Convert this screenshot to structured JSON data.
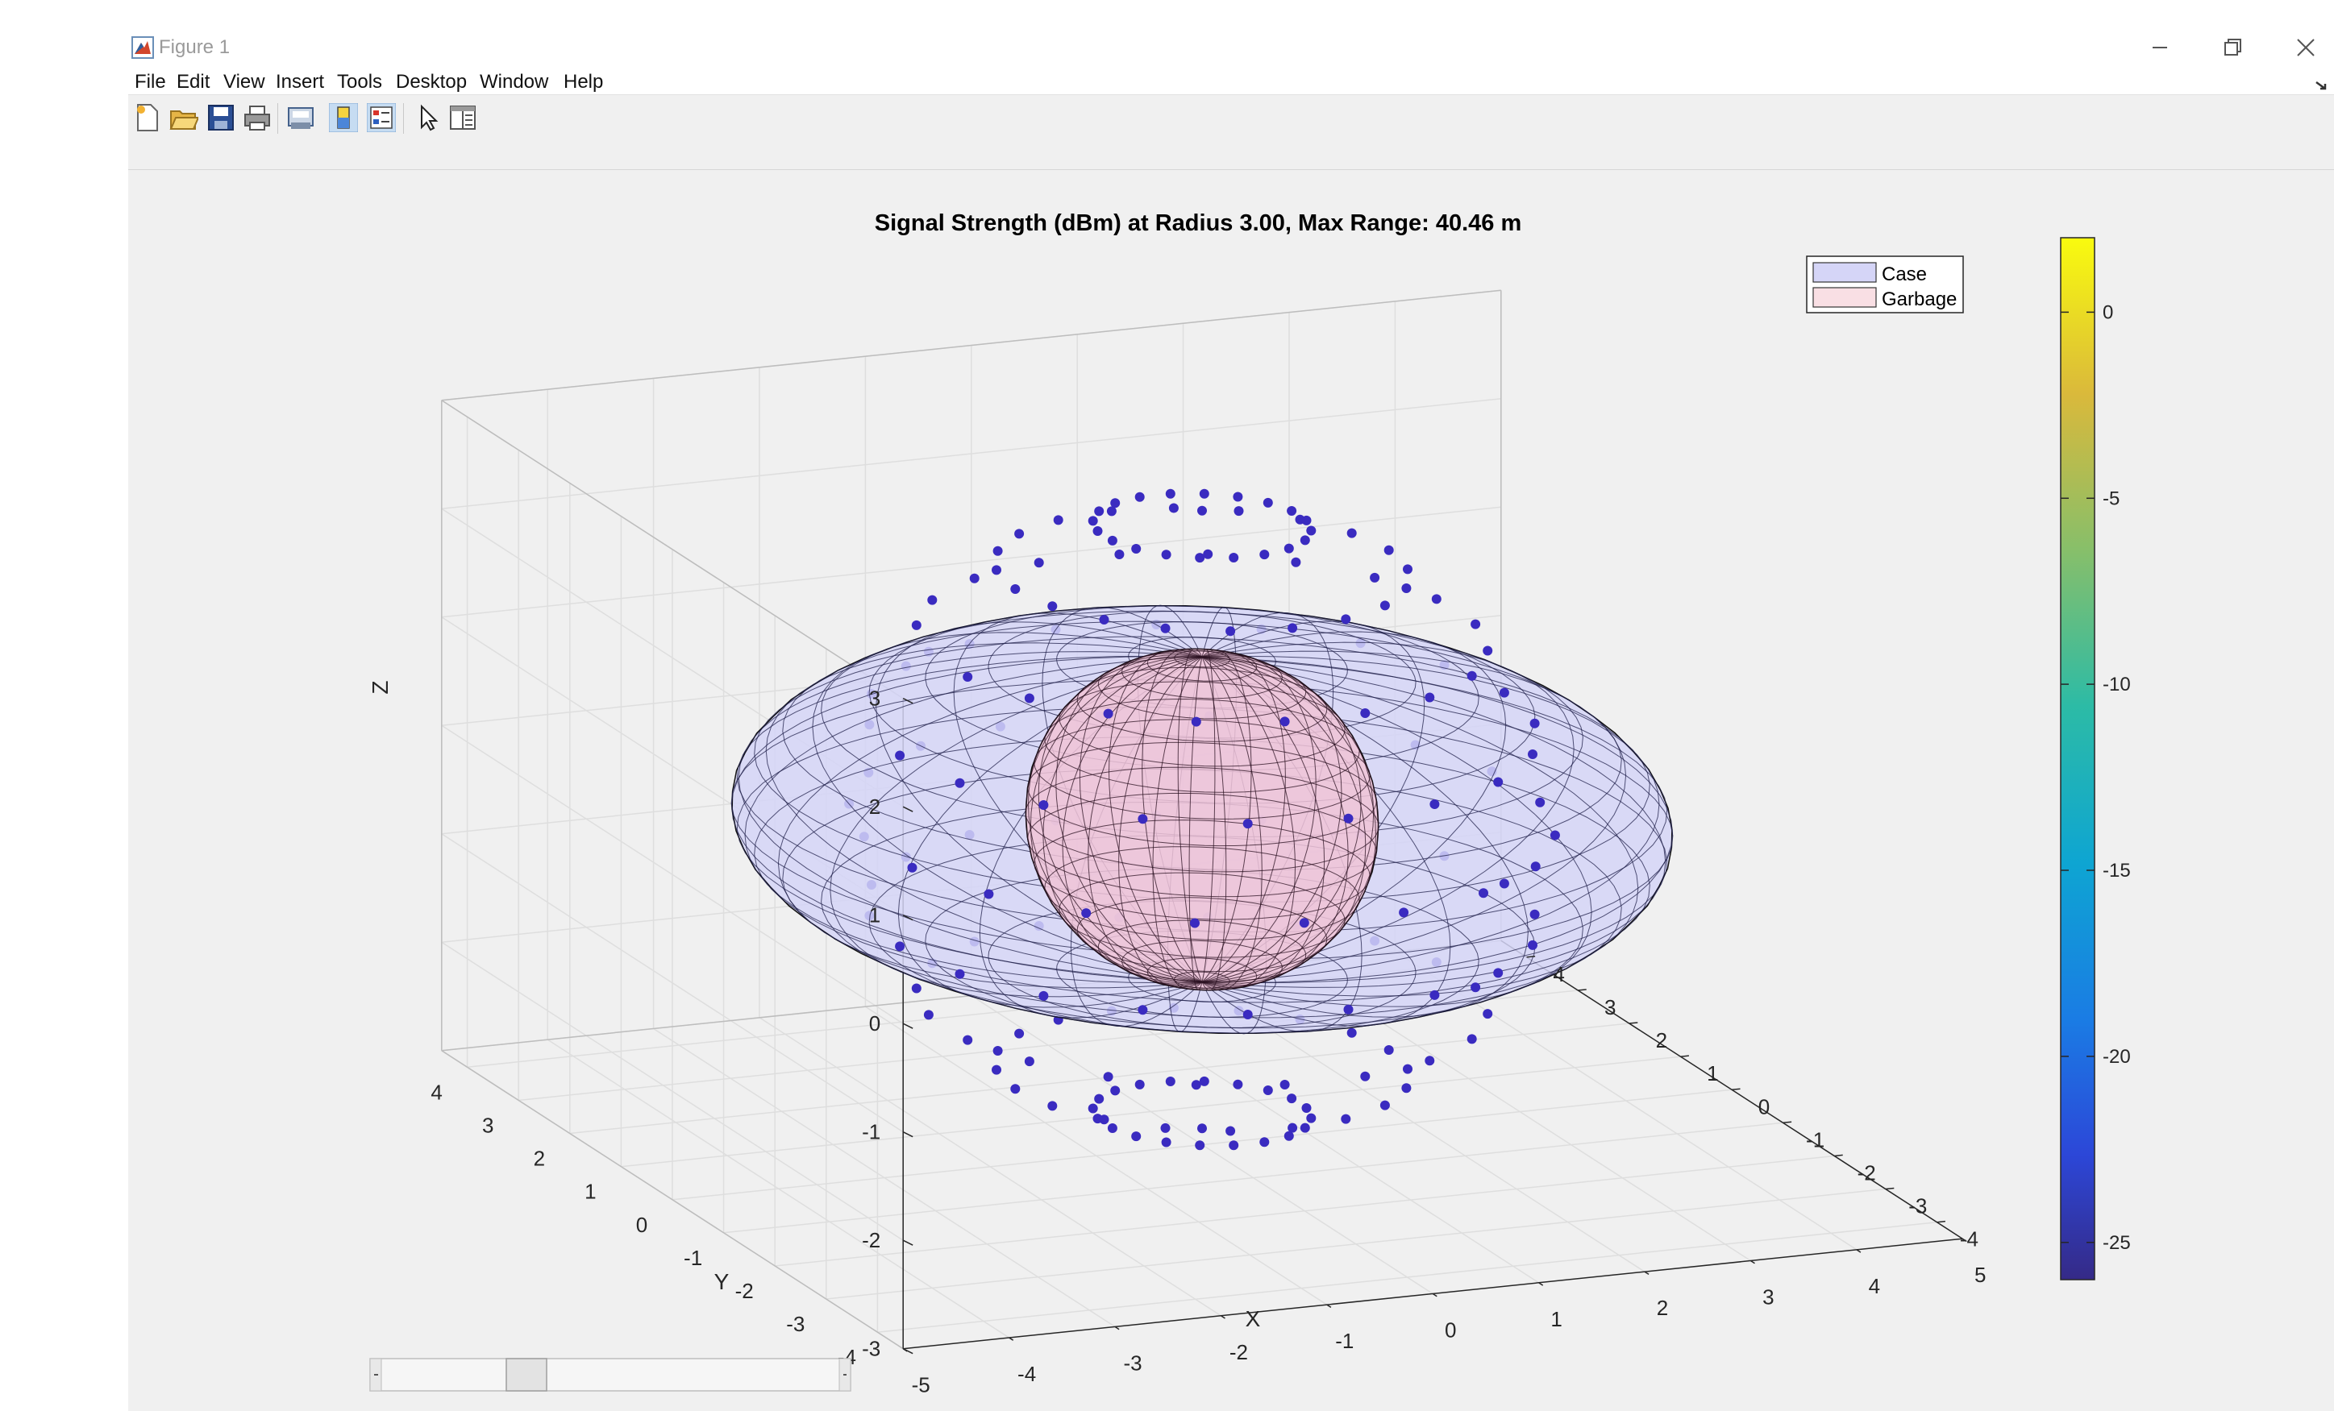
{
  "window": {
    "title": "Figure 1",
    "menu": [
      "File",
      "Edit",
      "View",
      "Insert",
      "Tools",
      "Desktop",
      "Window",
      "Help"
    ]
  },
  "toolbar": {
    "icons": [
      "new-figure-icon",
      "open-file-icon",
      "save-icon",
      "print-icon",
      "print-preview-icon",
      "colorbar-icon",
      "legend-icon",
      "pointer-icon",
      "property-editor-icon"
    ]
  },
  "figure": {
    "title": "Signal Strength (dBm) at Radius 3.00, Max Range: 40.46 m",
    "legend": [
      {
        "label": "Case",
        "color": "#d5d5f7"
      },
      {
        "label": "Garbage",
        "color": "#f9dfe4"
      }
    ],
    "axes": {
      "xlabel": "X",
      "ylabel": "Y",
      "zlabel": "Z",
      "xticks": [
        "-5",
        "-4",
        "-3",
        "-2",
        "-1",
        "0",
        "1",
        "2",
        "3",
        "4",
        "5"
      ],
      "yticks": [
        "-4",
        "-3",
        "-2",
        "-1",
        "0",
        "1",
        "2",
        "3",
        "4"
      ],
      "zticks": [
        "-3",
        "-2",
        "-1",
        "0",
        "1",
        "2",
        "3"
      ]
    },
    "colorbar": {
      "ticks": [
        "0",
        "-5",
        "-10",
        "-15",
        "-20",
        "-25"
      ],
      "colormap": "parula"
    },
    "marker_color": "#3a2bc0"
  },
  "chart_data": {
    "type": "scatter",
    "view": "3d",
    "title": "Signal Strength (dBm) at Radius 3.00, Max Range: 40.46 m",
    "xlabel": "X",
    "ylabel": "Y",
    "zlabel": "Z",
    "xlim": [
      -5,
      5
    ],
    "ylim": [
      -4.5,
      4.5
    ],
    "zlim": [
      -3,
      3
    ],
    "grid": true,
    "legend_position": "top-right",
    "surfaces": [
      {
        "name": "Case",
        "shape": "ellipsoid",
        "radii": [
          4,
          4,
          1.5
        ],
        "color": "#d5d5f7"
      },
      {
        "name": "Garbage",
        "shape": "sphere",
        "radius": 1.5,
        "color": "#f0c3d6"
      }
    ],
    "points": {
      "radius": 3.0,
      "value_dBm": -25,
      "color_range": [
        -26,
        2
      ]
    }
  }
}
